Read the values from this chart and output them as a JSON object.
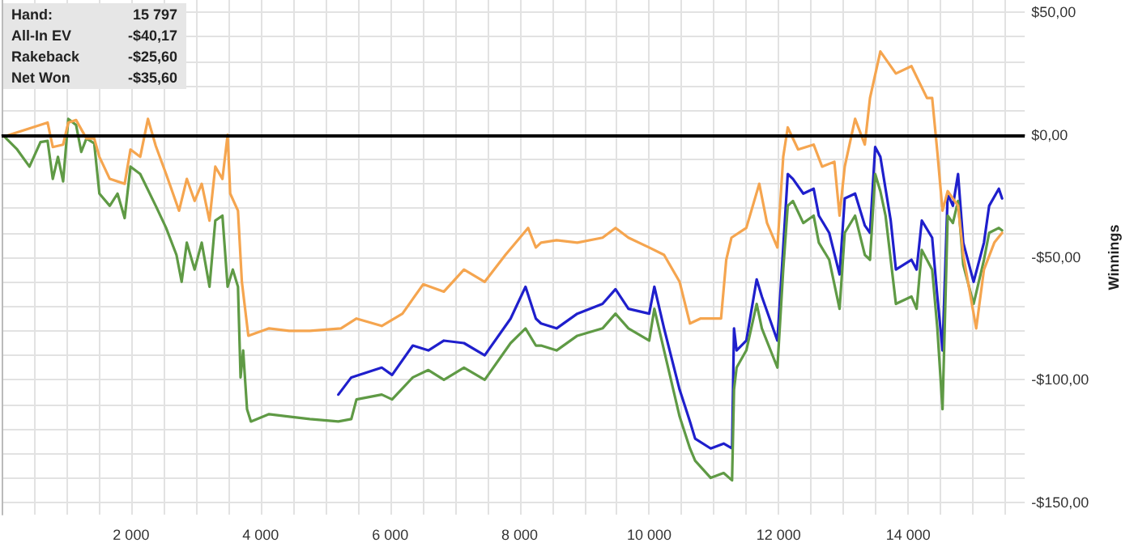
{
  "chart_data": {
    "type": "line",
    "ylabel": "Winnings",
    "annotations": [
      "Hand:",
      "15 797",
      "All-In EV",
      "-$40,17",
      "Rakeback",
      "-$25,60",
      "Net Won",
      "-$35,60"
    ],
    "xlim": [
      0,
      15800
    ],
    "ylim": [
      -155,
      55
    ],
    "xticks": [
      {
        "value": 500,
        "label": null
      },
      {
        "value": 1000,
        "label": null
      },
      {
        "value": 1500,
        "label": null
      },
      {
        "value": 2000,
        "label": "2 000"
      },
      {
        "value": 2500,
        "label": null
      },
      {
        "value": 3000,
        "label": null
      },
      {
        "value": 3500,
        "label": null
      },
      {
        "value": 4000,
        "label": "4 000"
      },
      {
        "value": 4500,
        "label": null
      },
      {
        "value": 5000,
        "label": null
      },
      {
        "value": 5500,
        "label": null
      },
      {
        "value": 6000,
        "label": "6 000"
      },
      {
        "value": 6500,
        "label": null
      },
      {
        "value": 7000,
        "label": null
      },
      {
        "value": 7500,
        "label": null
      },
      {
        "value": 8000,
        "label": "8 000"
      },
      {
        "value": 8500,
        "label": null
      },
      {
        "value": 9000,
        "label": null
      },
      {
        "value": 9500,
        "label": null
      },
      {
        "value": 10000,
        "label": "10 000"
      },
      {
        "value": 10500,
        "label": null
      },
      {
        "value": 11000,
        "label": null
      },
      {
        "value": 11500,
        "label": null
      },
      {
        "value": 12000,
        "label": "12 000"
      },
      {
        "value": 12500,
        "label": null
      },
      {
        "value": 13000,
        "label": null
      },
      {
        "value": 13500,
        "label": null
      },
      {
        "value": 14000,
        "label": "14 000"
      },
      {
        "value": 14500,
        "label": null
      },
      {
        "value": 15000,
        "label": null
      },
      {
        "value": 15500,
        "label": null
      }
    ],
    "yticks": [
      {
        "value": -150,
        "label": "-$150,00"
      },
      {
        "value": -140,
        "label": null
      },
      {
        "value": -130,
        "label": null
      },
      {
        "value": -120,
        "label": null
      },
      {
        "value": -110,
        "label": null
      },
      {
        "value": -100,
        "label": "-$100,00"
      },
      {
        "value": -90,
        "label": null
      },
      {
        "value": -80,
        "label": null
      },
      {
        "value": -70,
        "label": null
      },
      {
        "value": -60,
        "label": null
      },
      {
        "value": -50,
        "label": "-$50,00"
      },
      {
        "value": -40,
        "label": null
      },
      {
        "value": -30,
        "label": null
      },
      {
        "value": -20,
        "label": null
      },
      {
        "value": -10,
        "label": null
      },
      {
        "value": 0,
        "label": "$0,00"
      },
      {
        "value": 10,
        "label": null
      },
      {
        "value": 20,
        "label": null
      },
      {
        "value": 30,
        "label": null
      },
      {
        "value": 40,
        "label": null
      },
      {
        "value": 50,
        "label": "$50,00"
      }
    ],
    "grid": true,
    "marker": "none",
    "line_style": "solid",
    "ref_lines": [
      {
        "axis": "y",
        "value": 0,
        "color": "#000000"
      }
    ],
    "series": [
      {
        "color": "#1f1fcc",
        "x": [
          5200,
          5400,
          5870,
          6030,
          6350,
          6590,
          6830,
          7140,
          7460,
          7860,
          8090,
          8250,
          8330,
          8570,
          8890,
          9280,
          9480,
          9680,
          10000,
          10080,
          10230,
          10470,
          10630,
          10710,
          10950,
          11150,
          11280,
          11310,
          11350,
          11500,
          11660,
          11740,
          11980,
          12070,
          12140,
          12220,
          12380,
          12540,
          12620,
          12780,
          12940,
          13020,
          13180,
          13330,
          13410,
          13490,
          13570,
          13650,
          13730,
          13810,
          14050,
          14130,
          14210,
          14370,
          14450,
          14530,
          14610,
          14690,
          14770,
          14850,
          15010,
          15170,
          15250,
          15400,
          15450
        ],
        "values": [
          -106,
          -99,
          -95,
          -98,
          -86,
          -88,
          -84,
          -85,
          -90,
          -75,
          -62,
          -75,
          -77,
          -79,
          -73,
          -69,
          -63,
          -71,
          -73,
          -62,
          -79,
          -104,
          -117,
          -124,
          -128,
          -126,
          -128,
          -79,
          -88,
          -84,
          -59,
          -66,
          -84,
          -46,
          -16,
          -18,
          -24,
          -22,
          -33,
          -40,
          -57,
          -26,
          -24,
          -37,
          -40,
          -5,
          -9,
          -22,
          -35,
          -55,
          -51,
          -55,
          -35,
          -42,
          -66,
          -88,
          -24,
          -29,
          -16,
          -44,
          -60,
          -44,
          -29,
          -22,
          -26
        ]
      },
      {
        "color": "#5f9a45",
        "x": [
          40,
          240,
          430,
          600,
          710,
          790,
          870,
          950,
          1030,
          1150,
          1230,
          1310,
          1430,
          1510,
          1670,
          1790,
          1900,
          1990,
          2140,
          2380,
          2540,
          2700,
          2780,
          2860,
          2980,
          3090,
          3210,
          3300,
          3410,
          3490,
          3570,
          3650,
          3690,
          3730,
          3790,
          3850,
          4130,
          4440,
          4760,
          5200,
          5400,
          5480,
          5870,
          6030,
          6350,
          6590,
          6830,
          7140,
          7460,
          7860,
          8090,
          8250,
          8330,
          8570,
          8890,
          9280,
          9480,
          9680,
          10000,
          10080,
          10230,
          10470,
          10630,
          10710,
          10950,
          11150,
          11280,
          11310,
          11350,
          11500,
          11660,
          11740,
          11980,
          12070,
          12140,
          12220,
          12380,
          12540,
          12620,
          12780,
          12940,
          13020,
          13180,
          13330,
          13410,
          13490,
          13570,
          13650,
          13730,
          13810,
          14050,
          14130,
          14210,
          14370,
          14450,
          14530,
          14610,
          14690,
          14770,
          14850,
          15010,
          15170,
          15250,
          15400,
          15450
        ],
        "values": [
          -0.7,
          -6,
          -13,
          -3,
          -2.5,
          -18,
          -9,
          -19,
          6.5,
          4,
          -7,
          -1.5,
          -3.5,
          -24,
          -29,
          -24,
          -34,
          -13,
          -16,
          -29,
          -38,
          -49,
          -60,
          -44,
          -55,
          -44,
          -62,
          -35,
          -33,
          -62,
          -55,
          -62,
          -99,
          -88,
          -112,
          -117,
          -114,
          -115,
          -116,
          -117,
          -116,
          -108,
          -106,
          -108,
          -99,
          -96,
          -100,
          -95,
          -100,
          -85,
          -79,
          -86,
          -86,
          -88,
          -82,
          -79,
          -73,
          -79,
          -84,
          -71,
          -88,
          -115,
          -128,
          -133,
          -140,
          -138,
          -141,
          -104,
          -95,
          -88,
          -69,
          -79,
          -95,
          -55,
          -29,
          -27,
          -36,
          -33,
          -44,
          -51,
          -71,
          -40,
          -33,
          -49,
          -51,
          -16,
          -23,
          -33,
          -51,
          -69,
          -66,
          -71,
          -47,
          -55,
          -79,
          -112,
          -33,
          -36,
          -27,
          -53,
          -69,
          -51,
          -40,
          -38,
          -39
        ]
      },
      {
        "color": "#f5a54f",
        "x": [
          40,
          710,
          790,
          950,
          1030,
          1150,
          1310,
          1430,
          1510,
          1670,
          1900,
          1990,
          2140,
          2260,
          2380,
          2540,
          2740,
          2860,
          2980,
          3090,
          3210,
          3300,
          3410,
          3490,
          3530,
          3650,
          3710,
          3810,
          4130,
          4440,
          4760,
          5240,
          5480,
          5870,
          6190,
          6510,
          6830,
          7140,
          7460,
          7780,
          8130,
          8250,
          8330,
          8570,
          8890,
          9280,
          9480,
          9680,
          10000,
          10230,
          10470,
          10630,
          10790,
          11110,
          11190,
          11270,
          11500,
          11700,
          11820,
          11980,
          12070,
          12140,
          12300,
          12540,
          12670,
          12860,
          12940,
          13020,
          13180,
          13330,
          13410,
          13570,
          13810,
          14050,
          14290,
          14370,
          14450,
          14530,
          14610,
          14770,
          14850,
          15050,
          15170,
          15330,
          15450
        ],
        "values": [
          -0.7,
          5,
          -5,
          -4,
          5,
          6,
          -1.5,
          -1.5,
          -9,
          -18,
          -20,
          -6,
          -9,
          6.5,
          -4.5,
          -16,
          -31,
          -18,
          -27,
          -20,
          -35,
          -13,
          -18,
          0,
          -24,
          -31,
          -60,
          -82,
          -79,
          -80,
          -80,
          -79,
          -75,
          -78,
          -73,
          -61,
          -64,
          -55,
          -60,
          -49,
          -38,
          -46,
          -44,
          -43,
          -44,
          -42,
          -38,
          -42,
          -46,
          -49,
          -60,
          -77,
          -75,
          -75,
          -51,
          -42,
          -38,
          -20,
          -36,
          -46,
          -9,
          3,
          -6,
          -4,
          -13,
          -11,
          -33,
          -13,
          6.5,
          -4,
          15,
          34,
          25,
          28,
          15,
          15,
          -7,
          -31,
          -23,
          -29,
          -49,
          -79,
          -55,
          -44,
          -40
        ]
      }
    ]
  }
}
